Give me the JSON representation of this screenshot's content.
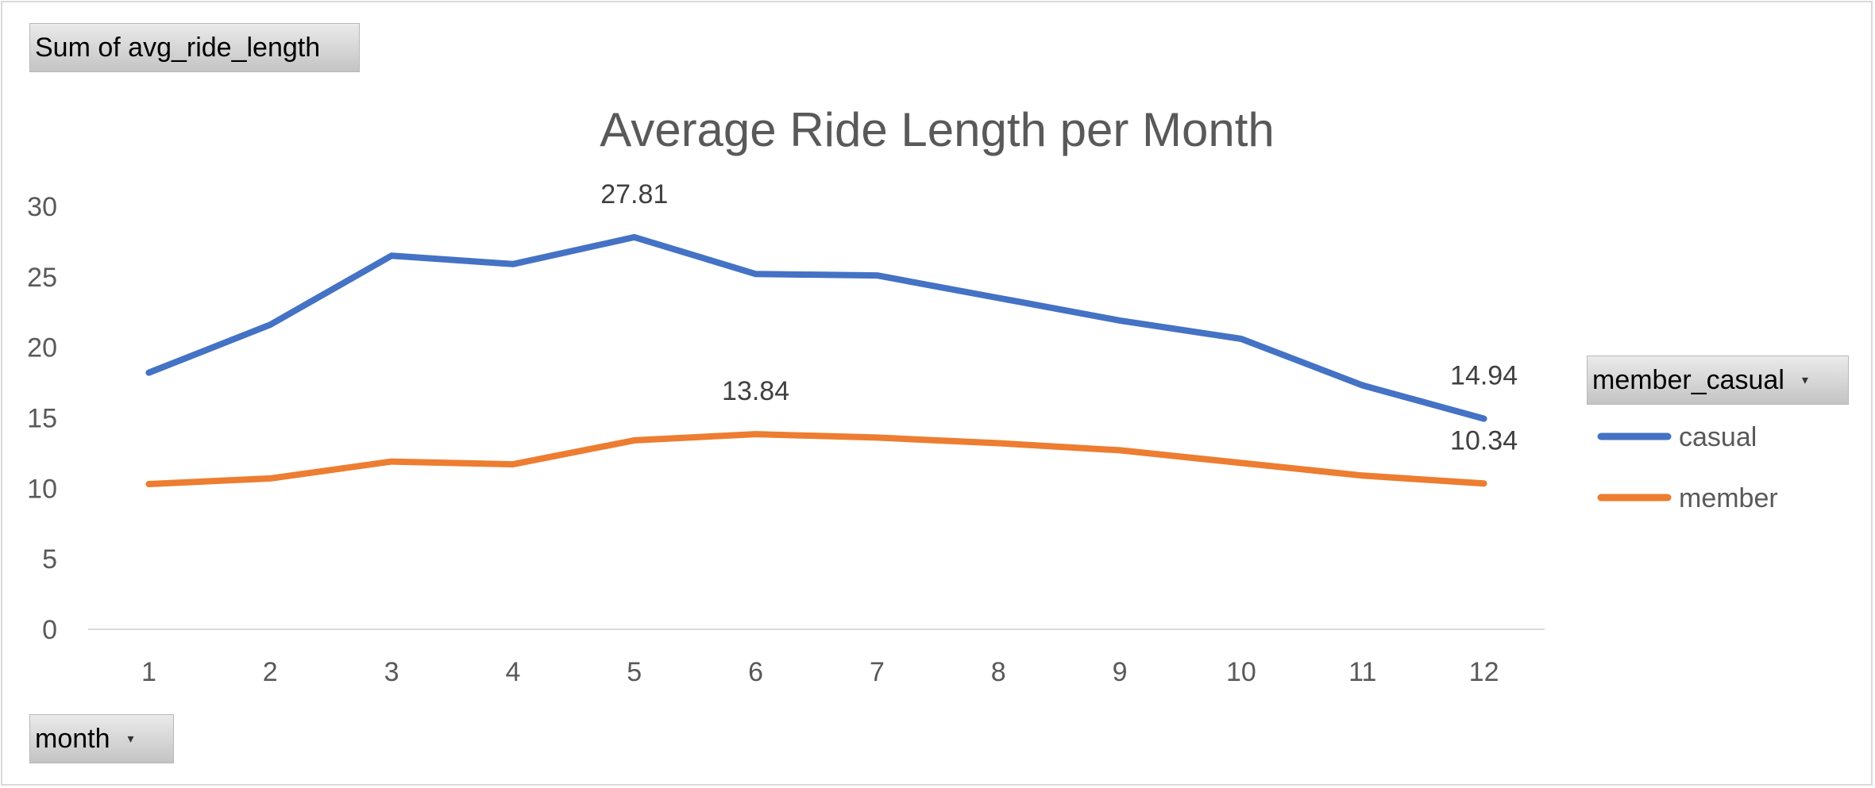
{
  "pivot": {
    "value_field": "Sum of avg_ride_length",
    "legend_field": "member_casual",
    "axis_field": "month",
    "dropdown_icon": "chevron-down-icon"
  },
  "chart_data": {
    "type": "line",
    "title": "Average Ride Length per Month",
    "xlabel": "",
    "ylabel": "",
    "categories": [
      "1",
      "2",
      "3",
      "4",
      "5",
      "6",
      "7",
      "8",
      "9",
      "10",
      "11",
      "12"
    ],
    "ylim": [
      0,
      30
    ],
    "yticks": [
      0,
      5,
      10,
      15,
      20,
      25,
      30
    ],
    "grid": false,
    "legend_placement": "right",
    "series": [
      {
        "name": "casual",
        "color": "#4472C4",
        "values": [
          18.2,
          21.6,
          26.5,
          25.9,
          27.81,
          25.2,
          25.1,
          23.5,
          21.9,
          20.6,
          17.3,
          14.94
        ]
      },
      {
        "name": "member",
        "color": "#ED7D31",
        "values": [
          10.3,
          10.7,
          11.9,
          11.7,
          13.4,
          13.84,
          13.6,
          13.2,
          12.7,
          11.8,
          10.9,
          10.34
        ]
      }
    ],
    "data_labels": [
      {
        "series": 0,
        "index": 4,
        "text": "27.81"
      },
      {
        "series": 0,
        "index": 11,
        "text": "14.94"
      },
      {
        "series": 1,
        "index": 5,
        "text": "13.84"
      },
      {
        "series": 1,
        "index": 11,
        "text": "10.34"
      }
    ]
  }
}
